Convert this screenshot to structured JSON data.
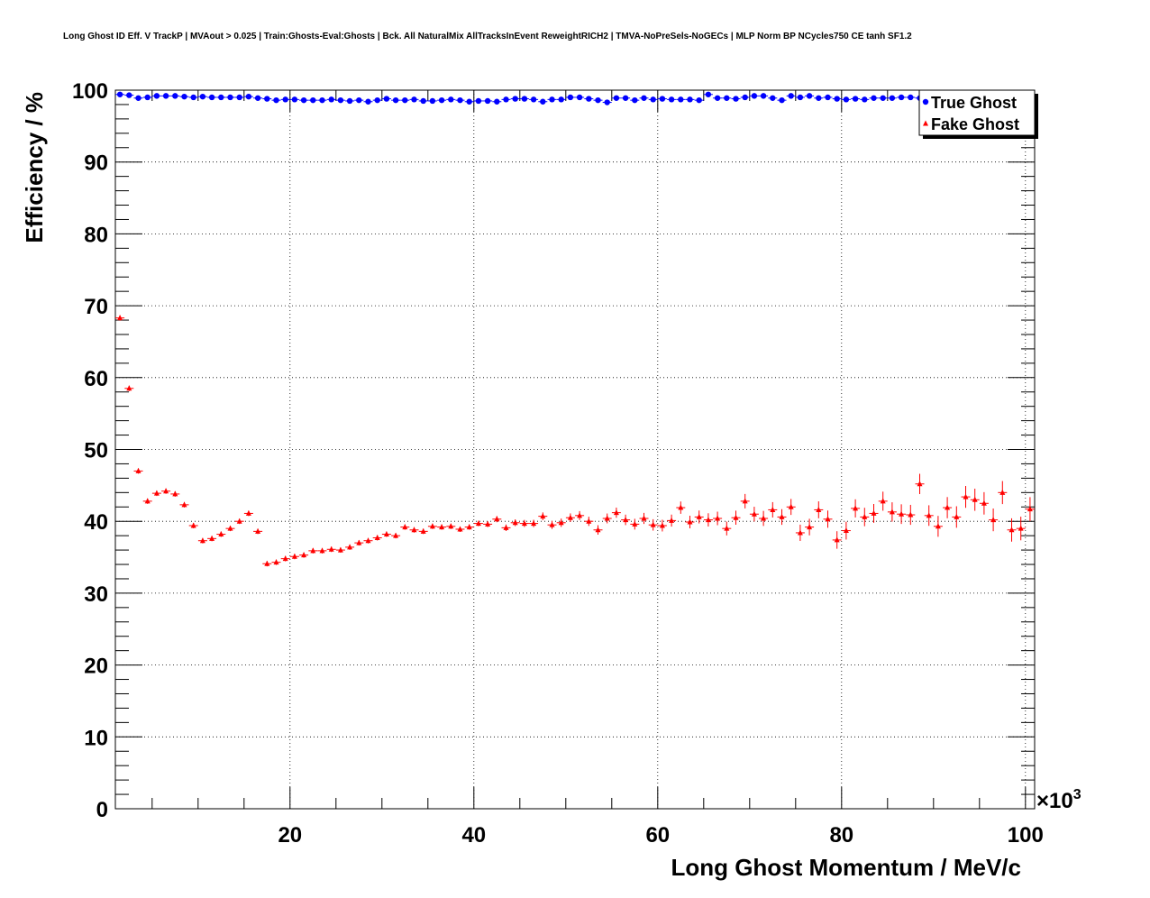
{
  "chart_data": {
    "type": "scatter",
    "title": "Long Ghost ID Eff. V TrackP | MVAout > 0.025 | Train:Ghosts-Eval:Ghosts | Bck. All NaturalMix AllTracksInEvent ReweightRICH2 | TMVA-NoPreSels-NoGECs | MLP Norm BP NCycles750 CE tanh SF1.2",
    "xlabel": "Long Ghost Momentum / MeV/c",
    "ylabel": "Efficiency / %",
    "x_multiplier": "×10",
    "x_multiplier_exp": "3",
    "xlim": [
      1,
      101
    ],
    "ylim": [
      0,
      100
    ],
    "x_ticks": [
      20,
      40,
      60,
      80,
      100
    ],
    "y_ticks": [
      0,
      10,
      20,
      30,
      40,
      50,
      60,
      70,
      80,
      90,
      100
    ],
    "grid": true,
    "legend_position": "top-right",
    "x": [
      1.5,
      2.5,
      3.5,
      4.5,
      5.5,
      6.5,
      7.5,
      8.5,
      9.5,
      10.5,
      11.5,
      12.5,
      13.5,
      14.5,
      15.5,
      16.5,
      17.5,
      18.5,
      19.5,
      20.5,
      21.5,
      22.5,
      23.5,
      24.5,
      25.5,
      26.5,
      27.5,
      28.5,
      29.5,
      30.5,
      31.5,
      32.5,
      33.5,
      34.5,
      35.5,
      36.5,
      37.5,
      38.5,
      39.5,
      40.5,
      41.5,
      42.5,
      43.5,
      44.5,
      45.5,
      46.5,
      47.5,
      48.5,
      49.5,
      50.5,
      51.5,
      52.5,
      53.5,
      54.5,
      55.5,
      56.5,
      57.5,
      58.5,
      59.5,
      60.5,
      61.5,
      62.5,
      63.5,
      64.5,
      65.5,
      66.5,
      67.5,
      68.5,
      69.5,
      70.5,
      71.5,
      72.5,
      73.5,
      74.5,
      75.5,
      76.5,
      77.5,
      78.5,
      79.5,
      80.5,
      81.5,
      82.5,
      83.5,
      84.5,
      85.5,
      86.5,
      87.5,
      88.5,
      89.5,
      90.5,
      91.5,
      92.5,
      93.5,
      94.5,
      95.5,
      96.5,
      97.5,
      98.5,
      99.5,
      100.5
    ],
    "series": [
      {
        "name": "True Ghost",
        "color": "#0000ff",
        "marker": "circle",
        "values": [
          99.4,
          99.3,
          98.9,
          99.0,
          99.2,
          99.2,
          99.2,
          99.1,
          99.0,
          99.1,
          99.0,
          99.0,
          99.0,
          99.0,
          99.1,
          98.9,
          98.8,
          98.6,
          98.7,
          98.7,
          98.6,
          98.6,
          98.6,
          98.7,
          98.6,
          98.5,
          98.6,
          98.4,
          98.6,
          98.8,
          98.6,
          98.6,
          98.7,
          98.5,
          98.5,
          98.6,
          98.7,
          98.6,
          98.4,
          98.5,
          98.5,
          98.4,
          98.7,
          98.8,
          98.8,
          98.7,
          98.4,
          98.7,
          98.7,
          99.0,
          99.0,
          98.8,
          98.6,
          98.3,
          98.9,
          98.9,
          98.6,
          98.9,
          98.7,
          98.8,
          98.7,
          98.7,
          98.7,
          98.6,
          99.4,
          98.9,
          98.9,
          98.8,
          99.0,
          99.2,
          99.2,
          98.9,
          98.6,
          99.2,
          99.0,
          99.2,
          98.9,
          99.0,
          98.8,
          98.7,
          98.8,
          98.7,
          98.9,
          98.9,
          98.9,
          99.0,
          99.0,
          98.9,
          99.1,
          99.0,
          99.1,
          98.8,
          99.0,
          99.3,
          99.0,
          99.1,
          99.0,
          99.2,
          99.1,
          99.0
        ]
      },
      {
        "name": "Fake Ghost",
        "color": "#ff0000",
        "marker": "triangle",
        "values": [
          68.3,
          58.5,
          47.0,
          42.8,
          43.9,
          44.2,
          43.8,
          42.3,
          39.4,
          37.3,
          37.6,
          38.2,
          39.0,
          40.0,
          41.1,
          38.6,
          34.1,
          34.3,
          34.8,
          35.1,
          35.3,
          35.9,
          35.9,
          36.1,
          36.0,
          36.4,
          37.0,
          37.3,
          37.7,
          38.2,
          38.0,
          39.2,
          38.8,
          38.6,
          39.3,
          39.2,
          39.3,
          38.9,
          39.2,
          39.7,
          39.6,
          40.3,
          39.1,
          39.8,
          39.7,
          39.7,
          40.7,
          39.5,
          39.8,
          40.5,
          40.8,
          40.0,
          38.8,
          40.4,
          41.2,
          40.2,
          39.6,
          40.4,
          39.5,
          39.4,
          40.1,
          41.9,
          39.9,
          40.6,
          40.2,
          40.4,
          39.0,
          40.5,
          42.8,
          41.0,
          40.4,
          41.6,
          40.6,
          42.0,
          38.4,
          39.2,
          41.6,
          40.3,
          37.4,
          38.7,
          41.8,
          40.6,
          41.1,
          42.8,
          41.3,
          41.0,
          40.9,
          45.2,
          40.8,
          39.3,
          41.9,
          40.6,
          43.4,
          43.0,
          42.5,
          40.2,
          44.0,
          38.8,
          39.0,
          41.7
        ]
      }
    ]
  }
}
